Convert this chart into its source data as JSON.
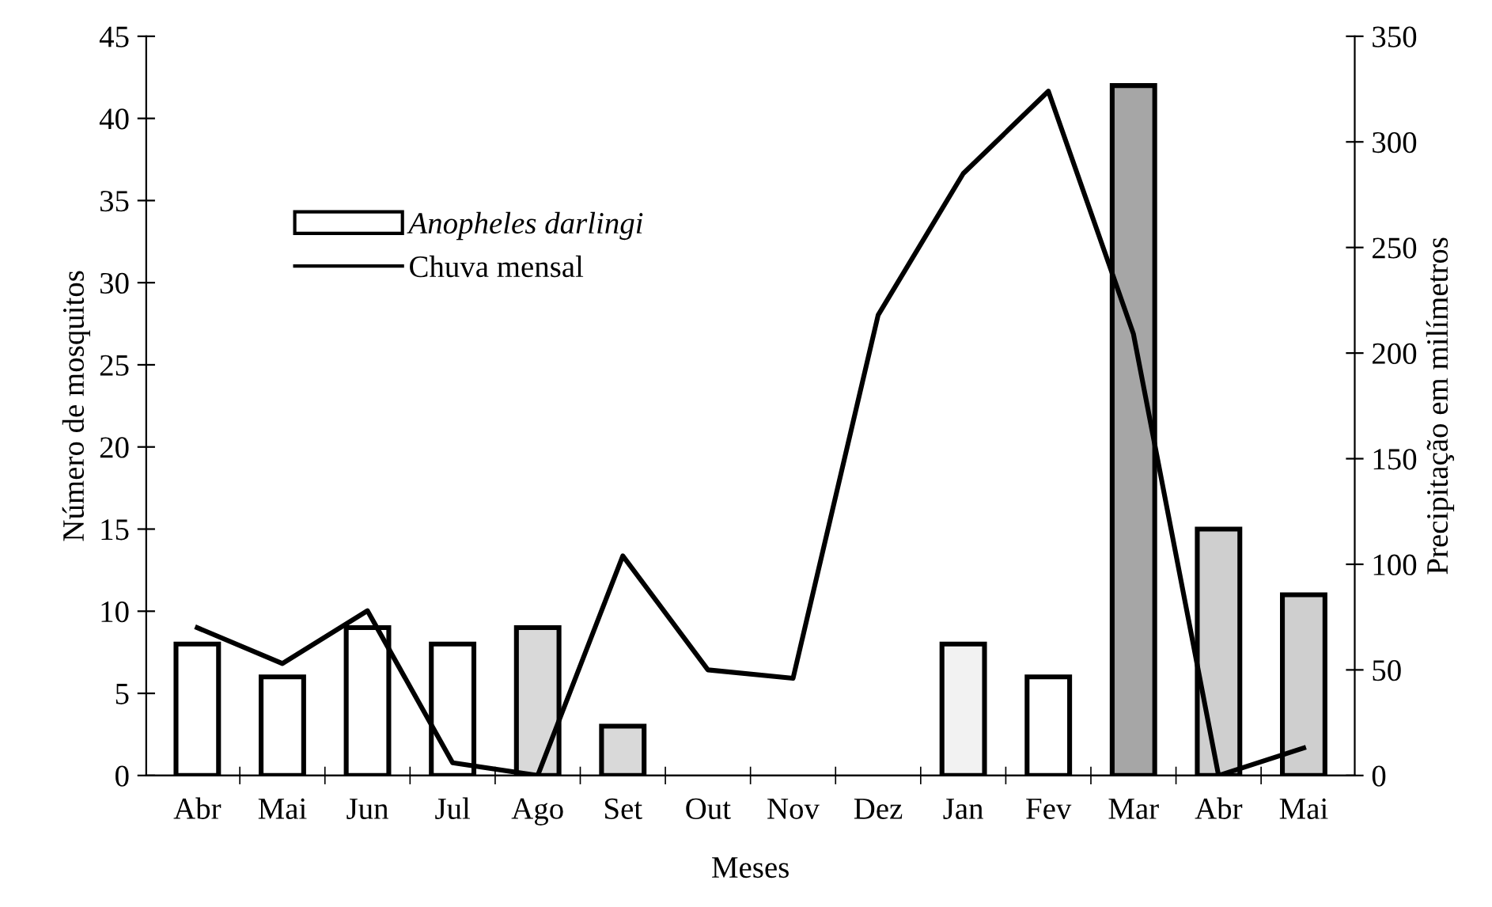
{
  "chart_data": {
    "type": "bar",
    "xlabel": "Meses",
    "ylabel": "Número de mosquitos",
    "y2label": "Precipitação em milímetros",
    "categories": [
      "Abr",
      "Mai",
      "Jun",
      "Jul",
      "Ago",
      "Set",
      "Out",
      "Nov",
      "Dez",
      "Jan",
      "Fev",
      "Mar",
      "Abr",
      "Mai"
    ],
    "series": [
      {
        "name": "Anopheles darlingi",
        "colors": [
          "#ffffff",
          "#ffffff",
          "#ffffff",
          "#ffffff",
          "#d9d9d9",
          "#d9d9d9",
          "#ffffff",
          "#ffffff",
          "#ffffff",
          "#f2f2f2",
          "#ffffff",
          "#a6a6a6",
          "#cfcfcf",
          "#cfcfcf"
        ],
        "values": [
          8,
          6,
          9,
          8,
          9,
          3,
          null,
          null,
          null,
          8,
          6,
          42,
          15,
          11
        ]
      },
      {
        "name": "Chuva mensal",
        "type": "line",
        "axis": "y2",
        "color": "#000000",
        "values": [
          70,
          53,
          78,
          6,
          0,
          104,
          50,
          46,
          218,
          285,
          324,
          209,
          0,
          13
        ]
      }
    ],
    "ylim": [
      0,
      45
    ],
    "yticks": [
      0,
      5,
      10,
      15,
      20,
      25,
      30,
      35,
      40,
      45
    ],
    "y2lim": [
      0,
      350
    ],
    "y2ticks": [
      0,
      50,
      100,
      150,
      200,
      250,
      300,
      350
    ],
    "legend": "top left",
    "grid": false,
    "marker": "none",
    "line_style": "solid"
  }
}
